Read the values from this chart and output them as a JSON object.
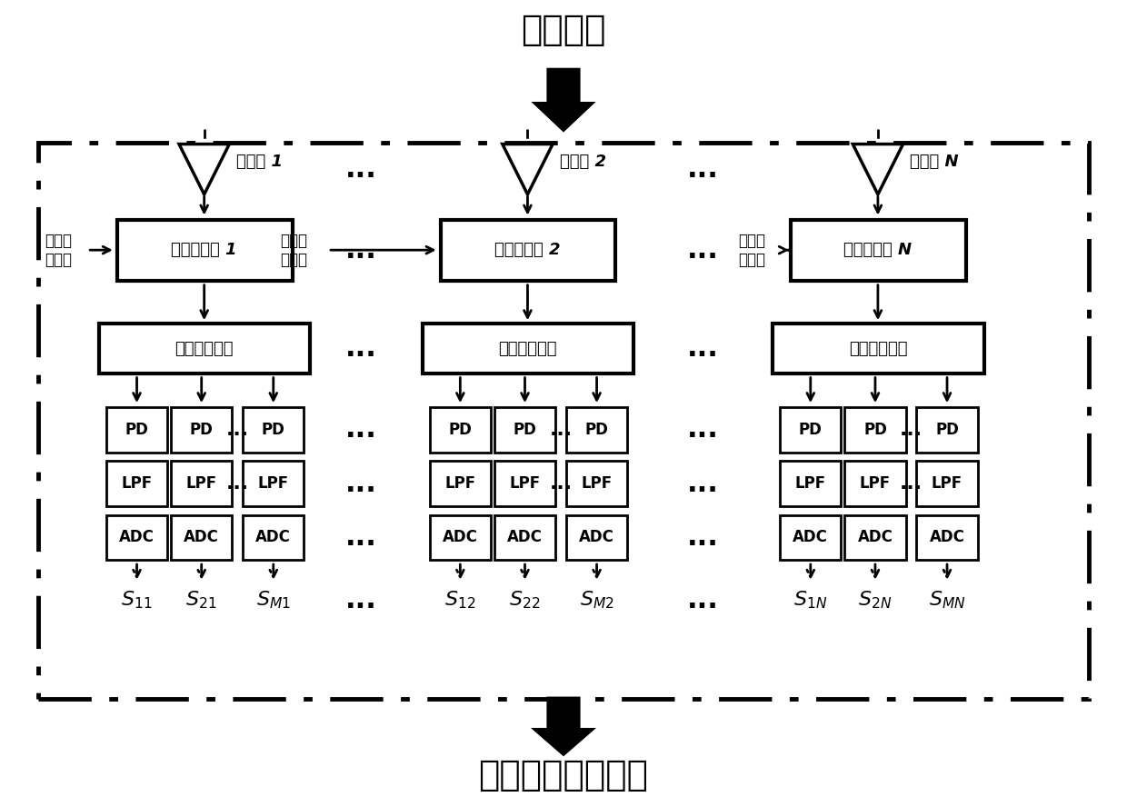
{
  "title_top": "接收天线",
  "title_bottom": "数字信号处理模块",
  "bg_color": "#ffffff",
  "lna_labels": [
    "低噪放 1",
    "低噪放 2",
    "低噪放 N"
  ],
  "phase_mod_labels": [
    "相位调制器 1",
    "相位调制器 2",
    "相位调制器 N"
  ],
  "demux_label": "光波分复用器",
  "beam_splitter_label": "光分束\n器输出",
  "output_labels_col1": [
    "S_{11}",
    "S_{21}",
    "S_{M1}"
  ],
  "output_labels_col2": [
    "S_{12}",
    "S_{22}",
    "S_{M2}"
  ],
  "output_labels_col3": [
    "S_{1N}",
    "S_{2N}",
    "S_{MN}"
  ],
  "fig_width": 12.4,
  "fig_height": 8.77,
  "dpi": 100
}
